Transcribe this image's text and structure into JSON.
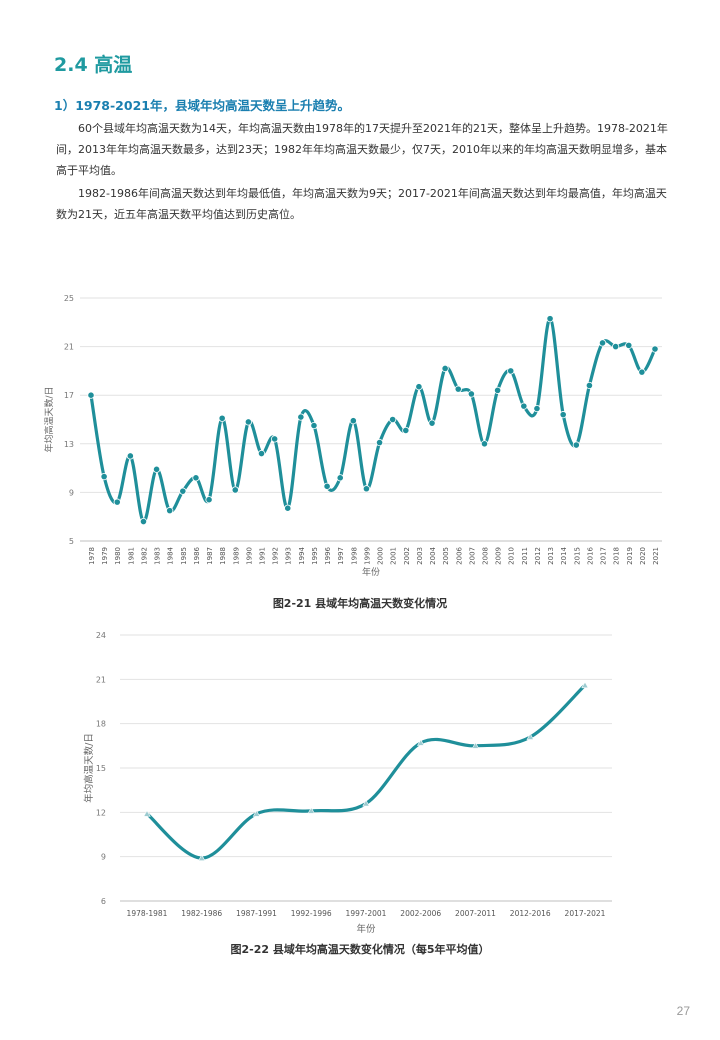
{
  "section": {
    "title": "2.4 高温",
    "subheading": "1）1978-2021年，县域年均高温天数呈上升趋势。",
    "paragraphs": [
      "60个县域年均高温天数为14天，年均高温天数由1978年的17天提升至2021年的21天，整体呈上升趋势。1978-2021年间，2013年年均高温天数最多，达到23天；1982年年均高温天数最少，仅7天，2010年以来的年均高温天数明显增多，基本高于平均值。",
      "1982-1986年间高温天数达到年均最低值，年均高温天数为9天；2017-2021年间高温天数达到年均最高值，年均高温天数为21天，近五年高温天数平均值达到历史高位。"
    ]
  },
  "chart_data": [
    {
      "type": "line",
      "caption": "图2-21 县域年均高温天数变化情况",
      "xlabel": "年份",
      "ylabel": "年均高温天数/日",
      "ylim": [
        5,
        25
      ],
      "yticks": [
        5,
        9,
        13,
        17,
        21,
        25
      ],
      "grid": true,
      "color": "#1f8f9a",
      "x": [
        "1978",
        "1979",
        "1980",
        "1981",
        "1982",
        "1983",
        "1984",
        "1985",
        "1986",
        "1987",
        "1988",
        "1989",
        "1990",
        "1991",
        "1992",
        "1993",
        "1994",
        "1995",
        "1996",
        "1997",
        "1998",
        "1999",
        "2000",
        "2001",
        "2002",
        "2003",
        "2004",
        "2005",
        "2006",
        "2007",
        "2008",
        "2009",
        "2010",
        "2011",
        "2012",
        "2013",
        "2014",
        "2015",
        "2016",
        "2017",
        "2018",
        "2019",
        "2020",
        "2021"
      ],
      "values": [
        17.0,
        10.3,
        8.2,
        12.0,
        6.6,
        10.9,
        7.5,
        9.1,
        10.2,
        8.4,
        15.1,
        9.2,
        14.8,
        12.2,
        13.4,
        7.7,
        15.2,
        14.5,
        9.5,
        10.2,
        14.9,
        9.3,
        13.1,
        15.0,
        14.1,
        17.7,
        14.7,
        19.2,
        17.5,
        17.1,
        13.0,
        17.4,
        19.0,
        16.1,
        15.9,
        23.3,
        15.4,
        12.9,
        17.8,
        21.3,
        21.0,
        21.1,
        18.9,
        20.8
      ]
    },
    {
      "type": "line",
      "caption": "图2-22 县域年均高温天数变化情况（每5年平均值）",
      "xlabel": "年份",
      "ylabel": "年均高温天数/日",
      "ylim": [
        6,
        24
      ],
      "yticks": [
        6,
        9,
        12,
        15,
        18,
        21,
        24
      ],
      "grid": true,
      "color": "#1f8f9a",
      "x": [
        "1978-1981",
        "1982-1986",
        "1987-1991",
        "1992-1996",
        "1997-2001",
        "2002-2006",
        "2007-2011",
        "2012-2016",
        "2017-2021"
      ],
      "values": [
        11.9,
        8.9,
        11.9,
        12.1,
        12.6,
        16.7,
        16.5,
        17.1,
        20.6
      ]
    }
  ],
  "page_number": "27"
}
